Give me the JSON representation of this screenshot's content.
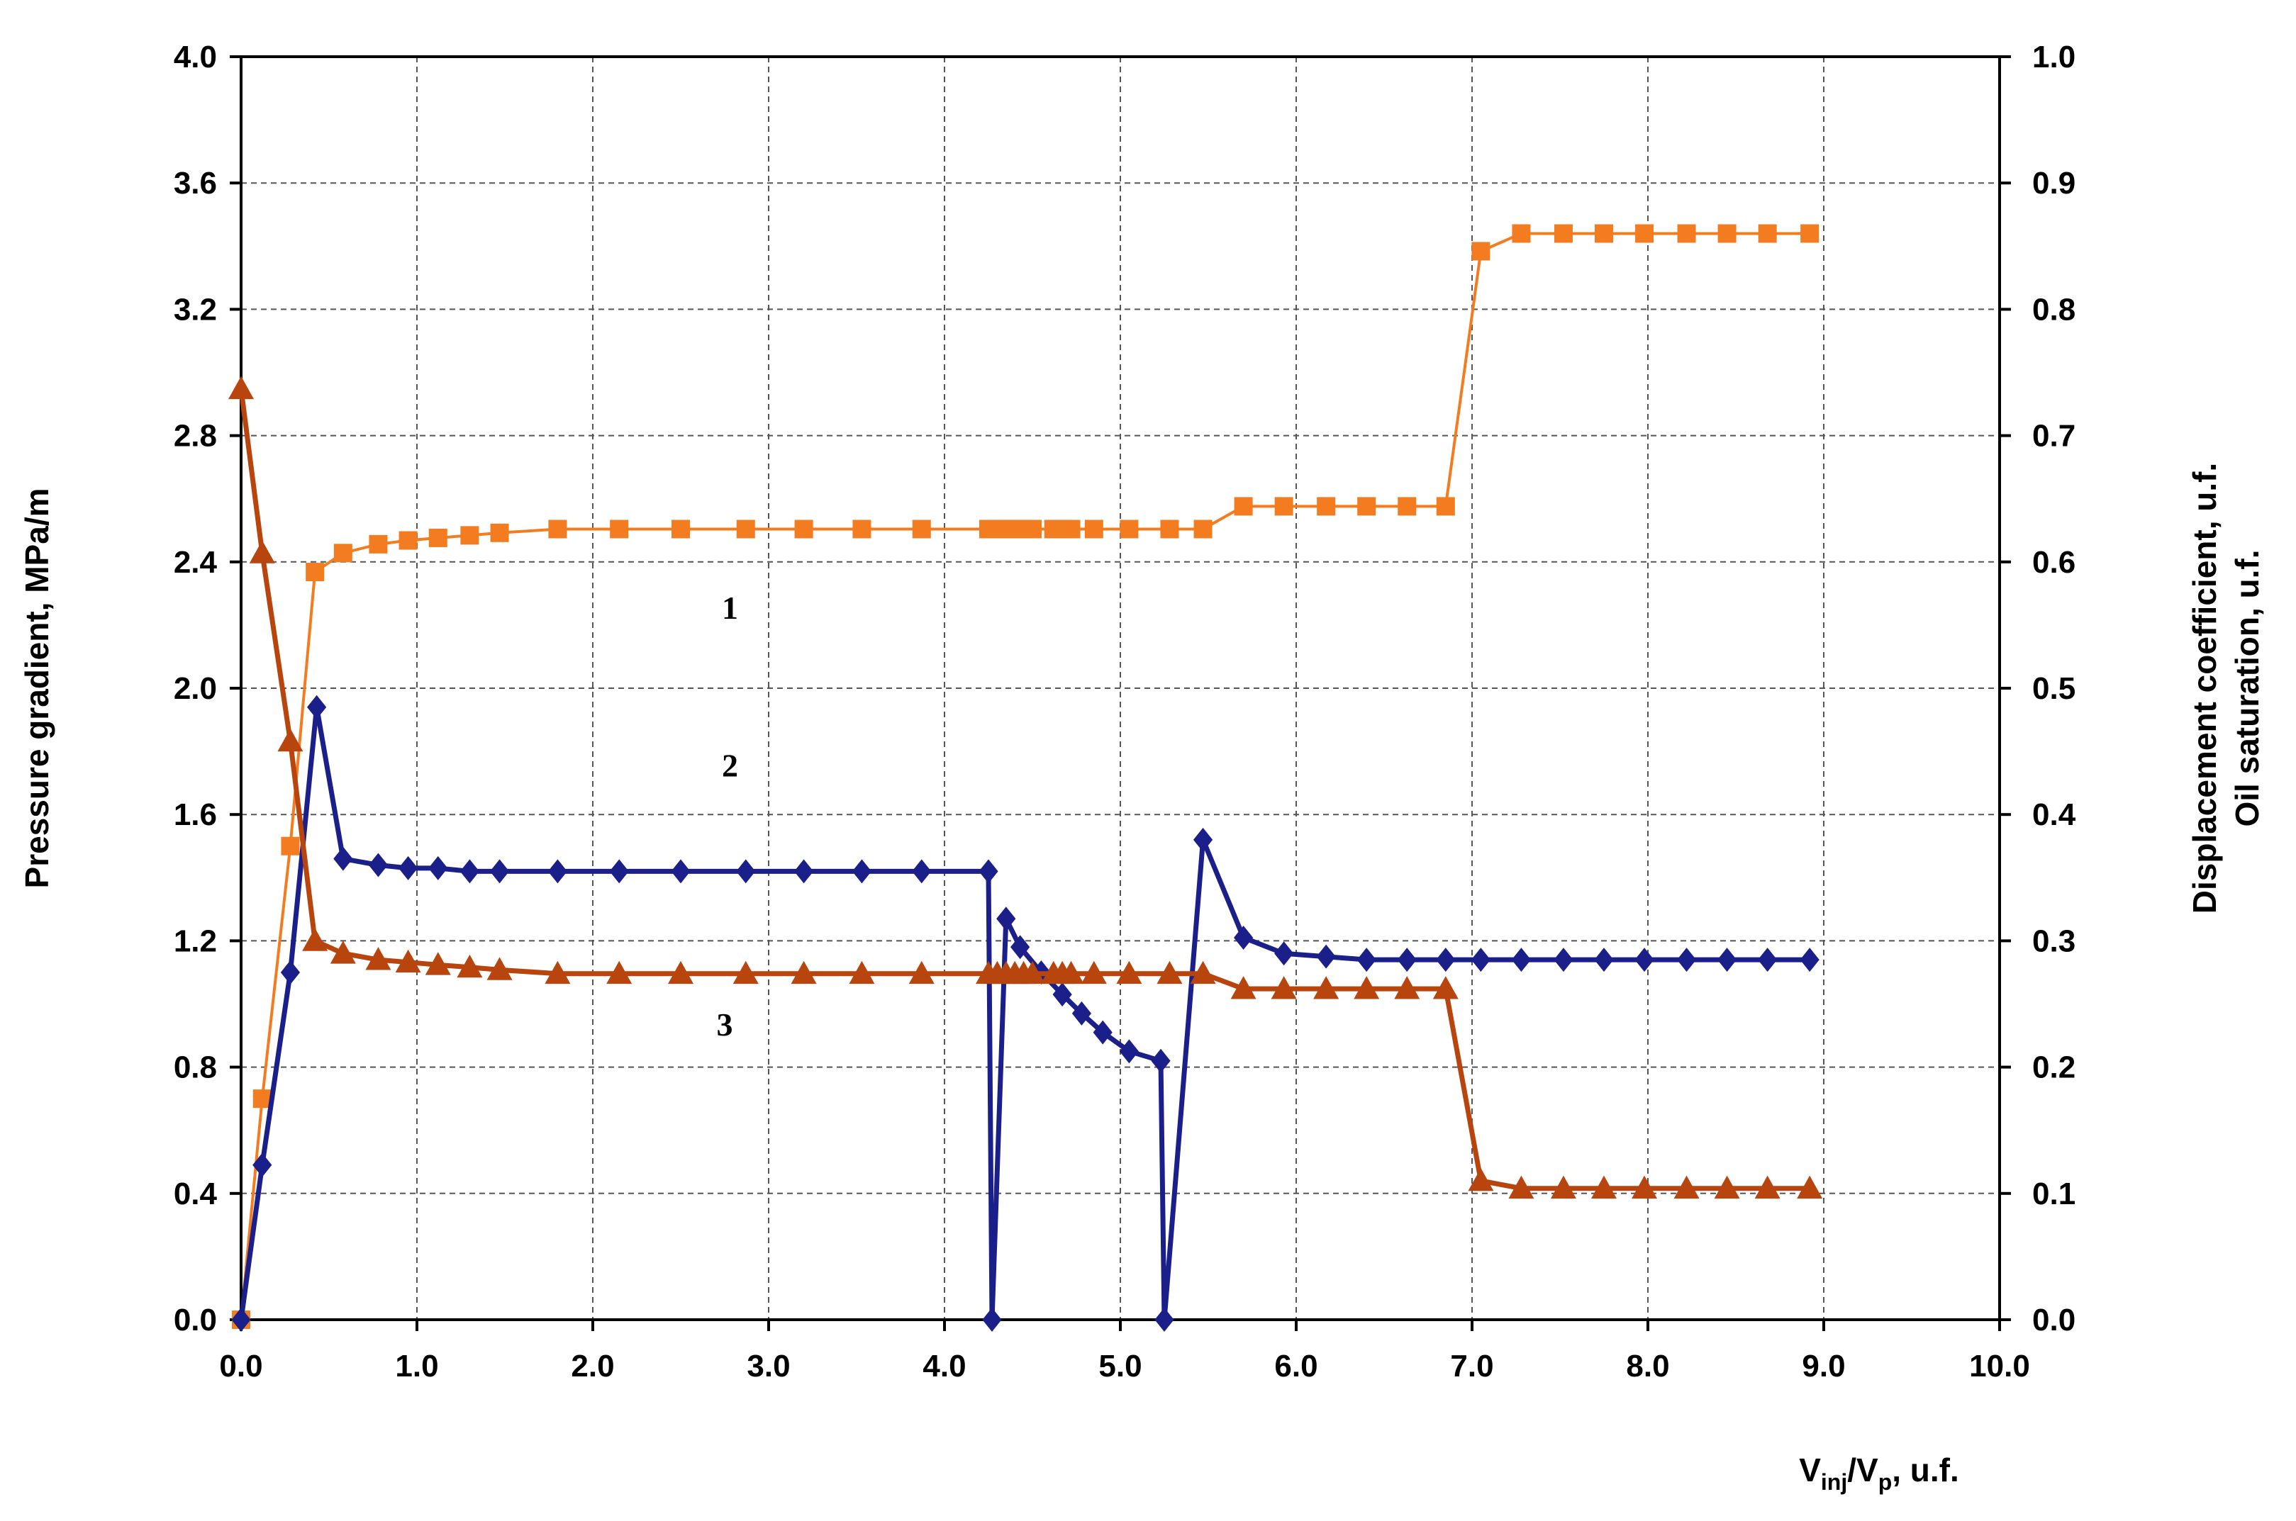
{
  "chart_data": {
    "type": "line",
    "title": "",
    "xlabel": {
      "main": "V",
      "sub1": "inj",
      "mid": "/V",
      "sub2": "p",
      "tail": ", u.f."
    },
    "ylabel_left": "Pressure gradient, MPa/m",
    "ylabel_right_1": "Displacement coefficient, u.f.",
    "ylabel_right_2": "Oil saturation, u.f.",
    "xlim": [
      0,
      10
    ],
    "ylim_left": [
      0,
      4.0
    ],
    "ylim_right": [
      0,
      1.0
    ],
    "grid": true,
    "grid_style": "dashed",
    "x_ticks": [
      "0.0",
      "1.0",
      "2.0",
      "3.0",
      "4.0",
      "5.0",
      "6.0",
      "7.0",
      "8.0",
      "9.0",
      "10.0"
    ],
    "y_left_ticks": [
      "0.0",
      "0.4",
      "0.8",
      "1.2",
      "1.6",
      "2.0",
      "2.4",
      "2.8",
      "3.2",
      "3.6",
      "4.0"
    ],
    "y_right_ticks": [
      "0.0",
      "0.1",
      "0.2",
      "0.3",
      "0.4",
      "0.5",
      "0.6",
      "0.7",
      "0.8",
      "0.9",
      "1.0"
    ],
    "series": [
      {
        "name": "1",
        "axis": "right",
        "color": "#F47C20",
        "marker": "square",
        "x": [
          0.0,
          0.12,
          0.28,
          0.42,
          0.58,
          0.78,
          0.95,
          1.12,
          1.3,
          1.47,
          1.8,
          2.15,
          2.5,
          2.87,
          3.2,
          3.53,
          3.87,
          4.25,
          4.3,
          4.35,
          4.4,
          4.45,
          4.5,
          4.62,
          4.67,
          4.72,
          4.85,
          5.05,
          5.28,
          5.47,
          5.7,
          5.93,
          6.17,
          6.4,
          6.63,
          6.85,
          7.05,
          7.28,
          7.52,
          7.75,
          7.98,
          8.22,
          8.45,
          8.68,
          8.92
        ],
        "y": [
          0.0,
          0.175,
          0.375,
          0.592,
          0.607,
          0.614,
          0.617,
          0.619,
          0.621,
          0.623,
          0.626,
          0.626,
          0.626,
          0.626,
          0.626,
          0.626,
          0.626,
          0.626,
          0.626,
          0.626,
          0.626,
          0.626,
          0.626,
          0.626,
          0.626,
          0.626,
          0.626,
          0.626,
          0.626,
          0.626,
          0.644,
          0.644,
          0.644,
          0.644,
          0.644,
          0.644,
          0.846,
          0.86,
          0.86,
          0.86,
          0.86,
          0.86,
          0.86,
          0.86,
          0.86
        ]
      },
      {
        "name": "2",
        "axis": "left",
        "color": "#1B1F8A",
        "marker": "diamond",
        "x": [
          0.0,
          0.12,
          0.28,
          0.43,
          0.58,
          0.78,
          0.95,
          1.12,
          1.3,
          1.47,
          1.8,
          2.15,
          2.5,
          2.87,
          3.2,
          3.53,
          3.87,
          4.25,
          4.27,
          4.35,
          4.43,
          4.55,
          4.67,
          4.78,
          4.9,
          5.05,
          5.23,
          5.25,
          5.47,
          5.7,
          5.93,
          6.17,
          6.4,
          6.63,
          6.85,
          7.05,
          7.28,
          7.52,
          7.75,
          7.98,
          8.22,
          8.45,
          8.68,
          8.92
        ],
        "y": [
          0.0,
          0.49,
          1.1,
          1.94,
          1.46,
          1.44,
          1.43,
          1.43,
          1.42,
          1.42,
          1.42,
          1.42,
          1.42,
          1.42,
          1.42,
          1.42,
          1.42,
          1.42,
          0.0,
          1.27,
          1.18,
          1.1,
          1.03,
          0.97,
          0.91,
          0.85,
          0.82,
          0.0,
          1.52,
          1.21,
          1.16,
          1.15,
          1.14,
          1.14,
          1.14,
          1.14,
          1.14,
          1.14,
          1.14,
          1.14,
          1.14,
          1.14,
          1.14,
          1.14
        ]
      },
      {
        "name": "3",
        "axis": "right",
        "color": "#B8440E",
        "marker": "triangle",
        "x": [
          0.0,
          0.12,
          0.28,
          0.42,
          0.58,
          0.78,
          0.95,
          1.12,
          1.3,
          1.47,
          1.8,
          2.15,
          2.5,
          2.87,
          3.2,
          3.53,
          3.87,
          4.25,
          4.3,
          4.35,
          4.4,
          4.45,
          4.5,
          4.62,
          4.67,
          4.72,
          4.85,
          5.05,
          5.28,
          5.47,
          5.7,
          5.93,
          6.17,
          6.4,
          6.63,
          6.85,
          7.05,
          7.28,
          7.52,
          7.75,
          7.98,
          8.22,
          8.45,
          8.68,
          8.92
        ],
        "y": [
          0.737,
          0.607,
          0.458,
          0.3,
          0.29,
          0.285,
          0.283,
          0.281,
          0.279,
          0.277,
          0.274,
          0.274,
          0.274,
          0.274,
          0.274,
          0.274,
          0.274,
          0.274,
          0.274,
          0.274,
          0.274,
          0.274,
          0.274,
          0.274,
          0.274,
          0.274,
          0.274,
          0.274,
          0.274,
          0.274,
          0.262,
          0.262,
          0.262,
          0.262,
          0.262,
          0.262,
          0.11,
          0.104,
          0.104,
          0.104,
          0.104,
          0.104,
          0.104,
          0.104,
          0.104
        ]
      }
    ],
    "annotations": [
      {
        "text": "1",
        "x": 2.78,
        "y_left": 2.22
      },
      {
        "text": "2",
        "x": 2.78,
        "y_left": 1.72
      },
      {
        "text": "3",
        "x": 2.75,
        "y_left": 0.9
      }
    ]
  }
}
